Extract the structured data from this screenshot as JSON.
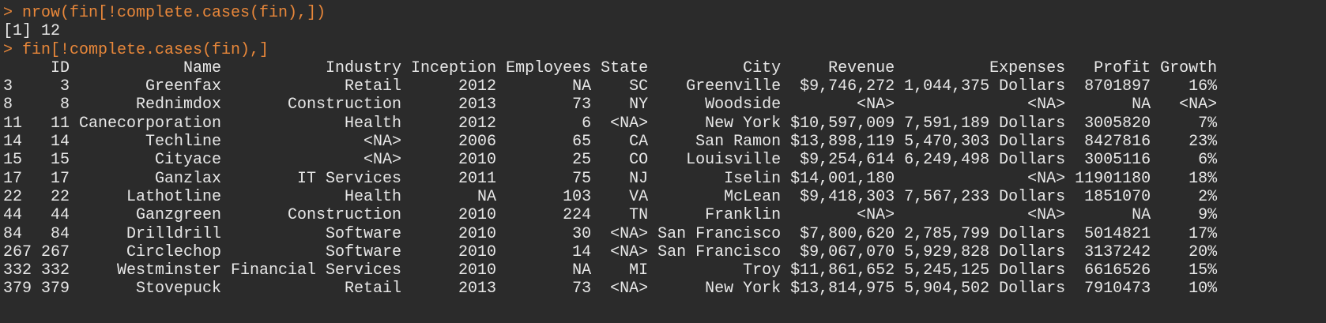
{
  "console": {
    "lines": [
      {
        "kind": "command",
        "text": "> nrow(fin[!complete.cases(fin),])"
      },
      {
        "kind": "output",
        "text": "[1] 12"
      },
      {
        "kind": "command",
        "text": "> fin[!complete.cases(fin),]"
      }
    ],
    "table": {
      "header": [
        "ID",
        "Name",
        "Industry",
        "Inception",
        "Employees",
        "State",
        "City",
        "Revenue",
        "Expenses",
        "Profit",
        "Growth"
      ],
      "rows": [
        [
          "3",
          "3",
          "Greenfax",
          "Retail",
          "2012",
          "NA",
          "SC",
          "Greenville",
          "$9,746,272",
          "1,044,375 Dollars",
          "8701897",
          "16%"
        ],
        [
          "8",
          "8",
          "Rednimdox",
          "Construction",
          "2013",
          "73",
          "NY",
          "Woodside",
          "<NA>",
          "<NA>",
          "NA",
          "<NA>"
        ],
        [
          "11",
          "11",
          "Canecorporation",
          "Health",
          "2012",
          "6",
          "<NA>",
          "New York",
          "$10,597,009",
          "7,591,189 Dollars",
          "3005820",
          "7%"
        ],
        [
          "14",
          "14",
          "Techline",
          "<NA>",
          "2006",
          "65",
          "CA",
          "San Ramon",
          "$13,898,119",
          "5,470,303 Dollars",
          "8427816",
          "23%"
        ],
        [
          "15",
          "15",
          "Cityace",
          "<NA>",
          "2010",
          "25",
          "CO",
          "Louisville",
          "$9,254,614",
          "6,249,498 Dollars",
          "3005116",
          "6%"
        ],
        [
          "17",
          "17",
          "Ganzlax",
          "IT Services",
          "2011",
          "75",
          "NJ",
          "Iselin",
          "$14,001,180",
          "<NA>",
          "11901180",
          "18%"
        ],
        [
          "22",
          "22",
          "Lathotline",
          "Health",
          "NA",
          "103",
          "VA",
          "McLean",
          "$9,418,303",
          "7,567,233 Dollars",
          "1851070",
          "2%"
        ],
        [
          "44",
          "44",
          "Ganzgreen",
          "Construction",
          "2010",
          "224",
          "TN",
          "Franklin",
          "<NA>",
          "<NA>",
          "NA",
          "9%"
        ],
        [
          "84",
          "84",
          "Drilldrill",
          "Software",
          "2010",
          "30",
          "<NA>",
          "San Francisco",
          "$7,800,620",
          "2,785,799 Dollars",
          "5014821",
          "17%"
        ],
        [
          "267",
          "267",
          "Circlechop",
          "Software",
          "2010",
          "14",
          "<NA>",
          "San Francisco",
          "$9,067,070",
          "5,929,828 Dollars",
          "3137242",
          "20%"
        ],
        [
          "332",
          "332",
          "Westminster",
          "Financial Services",
          "2010",
          "NA",
          "MI",
          "Troy",
          "$11,861,652",
          "5,245,125 Dollars",
          "6616526",
          "15%"
        ],
        [
          "379",
          "379",
          "Stovepuck",
          "Retail",
          "2013",
          "73",
          "<NA>",
          "New York",
          "$13,814,975",
          "5,904,502 Dollars",
          "7910473",
          "10%"
        ]
      ]
    }
  }
}
